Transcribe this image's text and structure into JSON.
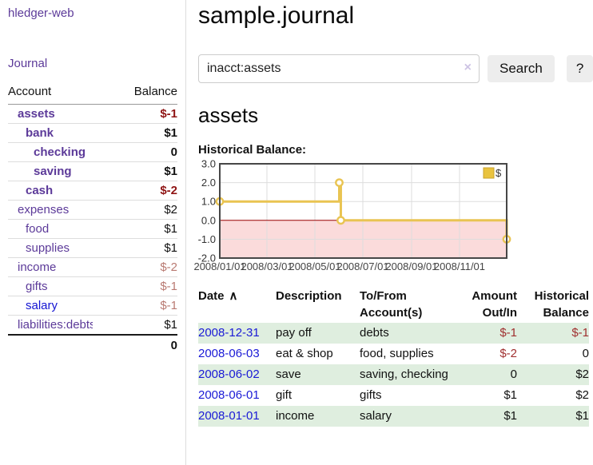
{
  "app": {
    "brand": "hledger-web"
  },
  "sidebar": {
    "nav": {
      "journal_label": "Journal"
    },
    "accounts": {
      "header": {
        "account": "Account",
        "balance": "Balance"
      },
      "rows": [
        {
          "label": "assets",
          "balance": "$-1",
          "indent": 1,
          "bold": true,
          "link_color": "purple",
          "balance_style": "neg-strong"
        },
        {
          "label": "bank",
          "balance": "$1",
          "indent": 2,
          "bold": true,
          "link_color": "purple",
          "balance_style": "plain"
        },
        {
          "label": "checking",
          "balance": "0",
          "indent": 3,
          "bold": true,
          "link_color": "purple",
          "balance_style": "plain"
        },
        {
          "label": "saving",
          "balance": "$1",
          "indent": 3,
          "bold": true,
          "link_color": "purple",
          "balance_style": "plain"
        },
        {
          "label": "cash",
          "balance": "$-2",
          "indent": 2,
          "bold": true,
          "link_color": "purple",
          "balance_style": "neg-strong"
        },
        {
          "label": "expenses",
          "balance": "$2",
          "indent": 1,
          "bold": false,
          "link_color": "purple",
          "balance_style": "plain"
        },
        {
          "label": "food",
          "balance": "$1",
          "indent": 2,
          "bold": false,
          "link_color": "purple",
          "balance_style": "plain"
        },
        {
          "label": "supplies",
          "balance": "$1",
          "indent": 2,
          "bold": false,
          "link_color": "purple",
          "balance_style": "plain"
        },
        {
          "label": "income",
          "balance": "$-2",
          "indent": 1,
          "bold": false,
          "link_color": "purple",
          "balance_style": "neg-light"
        },
        {
          "label": "gifts",
          "balance": "$-1",
          "indent": 2,
          "bold": false,
          "link_color": "purple",
          "balance_style": "neg-light"
        },
        {
          "label": "salary",
          "balance": "$-1",
          "indent": 2,
          "bold": false,
          "link_color": "blue",
          "balance_style": "neg-light"
        },
        {
          "label": "liabilities:debts",
          "balance": "$1",
          "indent": 1,
          "bold": false,
          "link_color": "purple",
          "balance_style": "plain"
        }
      ],
      "total": "0"
    }
  },
  "main": {
    "title": "sample.journal",
    "search": {
      "value": "inacct:assets",
      "clear_label": "×",
      "button_label": "Search",
      "help_label": "?"
    },
    "account_heading": "assets",
    "section_label": "Historical Balance:"
  },
  "chart_data": {
    "type": "line",
    "step": true,
    "title": "Historical Balance:",
    "series": [
      {
        "name": "$",
        "points": [
          {
            "date": "2008-01-01",
            "value": 1.0
          },
          {
            "date": "2008-06-01",
            "value": 2.0
          },
          {
            "date": "2008-06-03",
            "value": 0.0
          },
          {
            "date": "2008-12-31",
            "value": -1.0
          }
        ]
      }
    ],
    "ylim": [
      -2.0,
      3.0
    ],
    "y_ticks": [
      3.0,
      2.0,
      1.0,
      0.0,
      -1.0,
      -2.0
    ],
    "x_range": [
      "2008-01-01",
      "2008-12-31"
    ],
    "x_tick_dates": [
      "2008-01-01",
      "2008-03-01",
      "2008-05-01",
      "2008-07-01",
      "2008-09-01",
      "2008-11-01"
    ],
    "x_tick_labels": [
      "2008/01/01",
      "2008/03/01",
      "2008/05/01",
      "2008/07/01",
      "2008/09/01",
      "2008/11/01"
    ],
    "grid": true,
    "legend": {
      "label": "$",
      "position": "top-right"
    },
    "colors": {
      "line": "#e9c452",
      "marker_fill": "#ffffff",
      "negative_region": "#fbdbdb",
      "zero_line": "#990000",
      "grid": "#dddddd",
      "border": "#474747",
      "tick_text": "#444444",
      "legend_box_fill": "#e9c33f",
      "legend_box_border": "#caa32e"
    }
  },
  "transactions": {
    "headers": {
      "date": "Date",
      "sort_icon": "∧",
      "description": "Description",
      "accounts": "To/From Account(s)",
      "amount": "Amount Out/In",
      "balance": "Historical Balance"
    },
    "rows": [
      {
        "date": "2008-12-31",
        "description": "pay off",
        "accounts": "debts",
        "amount": "$-1",
        "amount_neg": true,
        "balance": "$-1",
        "balance_neg": true,
        "shaded": true
      },
      {
        "date": "2008-06-03",
        "description": "eat & shop",
        "accounts": "food, supplies",
        "amount": "$-2",
        "amount_neg": true,
        "balance": "0",
        "balance_neg": false,
        "shaded": false
      },
      {
        "date": "2008-06-02",
        "description": "save",
        "accounts": "saving, checking",
        "amount": "0",
        "amount_neg": false,
        "balance": "$2",
        "balance_neg": false,
        "shaded": true
      },
      {
        "date": "2008-06-01",
        "description": "gift",
        "accounts": "gifts",
        "amount": "$1",
        "amount_neg": false,
        "balance": "$2",
        "balance_neg": false,
        "shaded": false
      },
      {
        "date": "2008-01-01",
        "description": "income",
        "accounts": "salary",
        "amount": "$1",
        "amount_neg": false,
        "balance": "$1",
        "balance_neg": false,
        "shaded": true
      }
    ]
  }
}
